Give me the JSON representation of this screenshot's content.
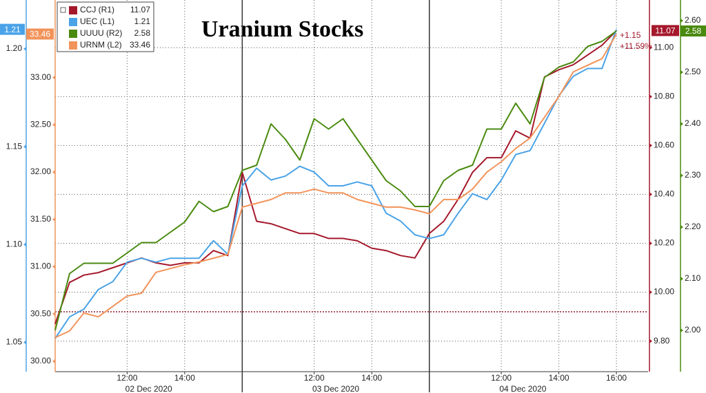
{
  "chart_data": {
    "type": "line",
    "title": "Uranium Stocks",
    "x": [
      0,
      0.5,
      1,
      1.5,
      2,
      2.5,
      3,
      3.5,
      4,
      4.5,
      5,
      5.5,
      6,
      6.5,
      7,
      7.5,
      8,
      8.5,
      9,
      9.5,
      10,
      10.5,
      11,
      11.5,
      12,
      12.5,
      13,
      13.5,
      14,
      14.5,
      15,
      15.5,
      16,
      16.5,
      17,
      17.5,
      18,
      18.5,
      19,
      19.5
    ],
    "xlim": [
      0,
      20.6
    ],
    "xticks": [
      {
        "value": 2.5,
        "label": "12:00"
      },
      {
        "value": 4.5,
        "label": "14:00"
      },
      {
        "value": 9,
        "label": "12:00"
      },
      {
        "value": 11,
        "label": "14:00"
      },
      {
        "value": 15.5,
        "label": "12:00"
      },
      {
        "value": 17.5,
        "label": "14:00"
      },
      {
        "value": 19.5,
        "label": "16:00"
      }
    ],
    "x_groups": [
      {
        "label": "02 Dec 2020",
        "range": [
          0,
          6.5
        ]
      },
      {
        "label": "03 Dec 2020",
        "range": [
          6.5,
          13
        ]
      },
      {
        "label": "04 Dec 2020",
        "range": [
          13,
          19.5
        ]
      }
    ],
    "axes": [
      {
        "side": "left",
        "color": "#4aa3e8",
        "ylim": [
          1.035,
          1.225
        ],
        "yticks": [
          {
            "value": 1.05,
            "label": "1.05"
          },
          {
            "value": 1.1,
            "label": "1.10"
          },
          {
            "value": 1.15,
            "label": "1.15"
          },
          {
            "value": 1.2,
            "label": "1.20"
          }
        ]
      },
      {
        "side": "left",
        "color": "#f2935a",
        "ylim": [
          29.89,
          33.82
        ],
        "yticks": [
          {
            "value": 30,
            "label": "30.00"
          },
          {
            "value": 30.5,
            "label": "30.50"
          },
          {
            "value": 31,
            "label": "31.00"
          },
          {
            "value": 31.5,
            "label": "31.50"
          },
          {
            "value": 32,
            "label": "32.00"
          },
          {
            "value": 32.5,
            "label": "32.50"
          },
          {
            "value": 33,
            "label": "33.00"
          }
        ]
      },
      {
        "side": "right",
        "color": "#a5182b",
        "ylim": [
          9.675,
          11.195
        ],
        "yticks": [
          {
            "value": 9.8,
            "label": "9.80"
          },
          {
            "value": 10,
            "label": "10.00"
          },
          {
            "value": 10.2,
            "label": "10.20"
          },
          {
            "value": 10.4,
            "label": "10.40"
          },
          {
            "value": 10.6,
            "label": "10.60"
          },
          {
            "value": 10.8,
            "label": "10.80"
          },
          {
            "value": 11,
            "label": "11.00"
          }
        ]
      },
      {
        "side": "right",
        "color": "#4a8a0f",
        "ylim": [
          1.92,
          2.64
        ],
        "yticks": [
          {
            "value": 2,
            "label": "2.00"
          },
          {
            "value": 2.1,
            "label": "2.10"
          },
          {
            "value": 2.2,
            "label": "2.20"
          },
          {
            "value": 2.3,
            "label": "2.30"
          },
          {
            "value": 2.4,
            "label": "2.40"
          },
          {
            "value": 2.5,
            "label": "2.50"
          },
          {
            "value": 2.6,
            "label": "2.60"
          }
        ]
      }
    ],
    "grid": true,
    "grid_axis": 2,
    "reference_line": {
      "axis": 2,
      "value": 9.92,
      "color": "#8b1a2b"
    },
    "series": [
      {
        "name": "CCJ (R1)",
        "color": "#a5182b",
        "axis": 2,
        "values": [
          9.87,
          10.04,
          10.07,
          10.08,
          10.1,
          10.12,
          10.14,
          10.12,
          10.11,
          10.12,
          10.12,
          10.17,
          10.15,
          10.49,
          10.29,
          10.28,
          10.26,
          10.24,
          10.24,
          10.22,
          10.22,
          10.21,
          10.18,
          10.17,
          10.15,
          10.14,
          10.24,
          10.29,
          10.38,
          10.49,
          10.55,
          10.55,
          10.66,
          10.63,
          10.88,
          10.91,
          10.93,
          10.97,
          11.01,
          11.07
        ]
      },
      {
        "name": "UEC (L1)",
        "color": "#4aa3e8",
        "axis": 0,
        "values": [
          1.052,
          1.063,
          1.067,
          1.077,
          1.081,
          1.091,
          1.093,
          1.091,
          1.093,
          1.093,
          1.093,
          1.102,
          1.095,
          1.13,
          1.139,
          1.133,
          1.135,
          1.14,
          1.137,
          1.13,
          1.13,
          1.132,
          1.13,
          1.116,
          1.112,
          1.105,
          1.103,
          1.105,
          1.116,
          1.126,
          1.123,
          1.133,
          1.146,
          1.148,
          1.162,
          1.176,
          1.186,
          1.19,
          1.19,
          1.21
        ]
      },
      {
        "name": "UUUU (R2)",
        "color": "#4a8a0f",
        "axis": 3,
        "values": [
          2.0,
          2.11,
          2.13,
          2.13,
          2.13,
          2.15,
          2.17,
          2.17,
          2.19,
          2.21,
          2.25,
          2.23,
          2.24,
          2.31,
          2.32,
          2.4,
          2.37,
          2.33,
          2.41,
          2.39,
          2.41,
          2.37,
          2.33,
          2.29,
          2.27,
          2.24,
          2.24,
          2.29,
          2.31,
          2.32,
          2.39,
          2.39,
          2.44,
          2.4,
          2.49,
          2.51,
          2.52,
          2.55,
          2.56,
          2.58
        ]
      },
      {
        "name": "URNM (L2)",
        "color": "#f2935a",
        "axis": 1,
        "values": [
          30.25,
          30.32,
          30.51,
          30.47,
          30.58,
          30.69,
          30.72,
          30.94,
          30.98,
          31.02,
          31.05,
          31.09,
          31.13,
          31.63,
          31.67,
          31.71,
          31.78,
          31.78,
          31.82,
          31.78,
          31.78,
          31.71,
          31.67,
          31.63,
          31.63,
          31.6,
          31.56,
          31.71,
          31.71,
          31.82,
          32.0,
          32.11,
          32.25,
          32.36,
          32.58,
          32.8,
          33.06,
          33.13,
          33.2,
          33.46
        ]
      }
    ],
    "annotations": [
      "+1.15",
      "+11.59%"
    ]
  }
}
